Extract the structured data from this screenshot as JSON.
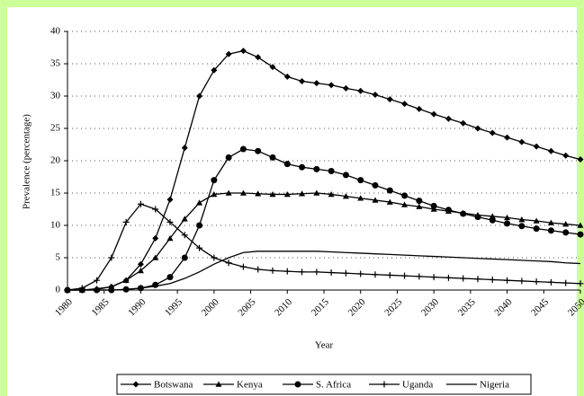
{
  "chart_data": {
    "type": "line",
    "y_label": "Prevalence (percentage)",
    "x_label": "Year",
    "x": [
      1980,
      1982,
      1984,
      1986,
      1988,
      1990,
      1992,
      1994,
      1996,
      1998,
      2000,
      2002,
      2004,
      2006,
      2008,
      2010,
      2012,
      2014,
      2016,
      2018,
      2020,
      2022,
      2024,
      2026,
      2028,
      2030,
      2032,
      2034,
      2036,
      2038,
      2040,
      2042,
      2044,
      2046,
      2048,
      2050
    ],
    "series": [
      {
        "name": "Botswana",
        "color": "#000000",
        "marker": "diamond",
        "values": [
          0,
          0,
          0.1,
          0.5,
          1.5,
          4,
          8,
          14,
          22,
          30,
          34,
          36.5,
          37,
          36,
          34.5,
          33,
          32.3,
          32,
          31.7,
          31.2,
          30.8,
          30.2,
          29.5,
          28.8,
          28,
          27.2,
          26.5,
          25.8,
          25,
          24.3,
          23.6,
          22.9,
          22.2,
          21.5,
          20.8,
          20.2
        ]
      },
      {
        "name": "Kenya",
        "color": "#000000",
        "marker": "triangle",
        "values": [
          0,
          0,
          0.2,
          0.5,
          1.5,
          3,
          5,
          8,
          11,
          13.5,
          14.8,
          15,
          15,
          14.9,
          14.8,
          14.8,
          14.9,
          15,
          14.8,
          14.5,
          14.2,
          13.9,
          13.6,
          13.2,
          12.9,
          12.5,
          12.2,
          11.9,
          11.6,
          11.4,
          11.2,
          10.9,
          10.7,
          10.4,
          10.2,
          10
        ]
      },
      {
        "name": "S. Africa",
        "color": "#000000",
        "marker": "circle",
        "values": [
          0,
          0,
          0,
          0,
          0.1,
          0.3,
          0.8,
          2,
          5,
          10,
          17,
          20.5,
          21.8,
          21.5,
          20.5,
          19.5,
          19,
          18.7,
          18.4,
          17.8,
          17,
          16.2,
          15.4,
          14.6,
          13.8,
          13,
          12.4,
          11.8,
          11.3,
          10.8,
          10.3,
          9.9,
          9.5,
          9.2,
          8.9,
          8.6
        ]
      },
      {
        "name": "Uganda",
        "color": "#000000",
        "marker": "plus",
        "values": [
          0,
          0.3,
          1.5,
          5,
          10.5,
          13.3,
          12.5,
          10.5,
          8.5,
          6.5,
          5,
          4.2,
          3.6,
          3.2,
          3,
          2.9,
          2.8,
          2.8,
          2.7,
          2.6,
          2.5,
          2.4,
          2.3,
          2.2,
          2.1,
          2,
          1.9,
          1.8,
          1.7,
          1.6,
          1.5,
          1.4,
          1.3,
          1.2,
          1.1,
          1
        ]
      },
      {
        "name": "Nigeria",
        "color": "#000000",
        "marker": "none",
        "values": [
          0,
          0,
          0,
          0,
          0.1,
          0.3,
          0.6,
          1,
          1.8,
          2.8,
          4,
          5,
          5.8,
          6,
          6,
          6,
          6,
          6,
          5.9,
          5.8,
          5.7,
          5.6,
          5.5,
          5.4,
          5.3,
          5.2,
          5.1,
          5,
          4.9,
          4.8,
          4.7,
          4.6,
          4.5,
          4.4,
          4.2,
          4.1
        ]
      }
    ],
    "xlim": [
      1980,
      2050
    ],
    "xticks": [
      1980,
      1985,
      1990,
      1995,
      2000,
      2005,
      2010,
      2015,
      2020,
      2025,
      2030,
      2035,
      2040,
      2045,
      2050
    ],
    "ylim": [
      0,
      40
    ],
    "yticks": [
      0,
      5,
      10,
      15,
      20,
      25,
      30,
      35,
      40
    ],
    "grid": true,
    "legend": "bottom"
  }
}
